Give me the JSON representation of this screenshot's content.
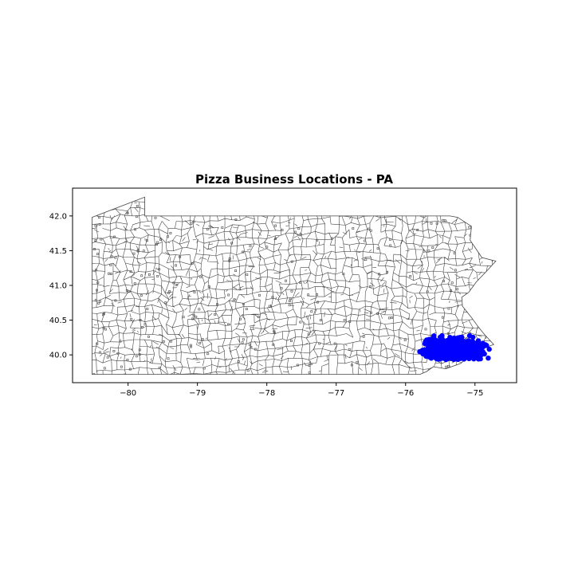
{
  "chart_data": {
    "type": "scatter",
    "title": "Pizza Business Locations - PA",
    "xlabel": "",
    "ylabel": "",
    "xlim": [
      -80.8,
      -74.4
    ],
    "ylim": [
      39.6,
      42.4
    ],
    "x_ticks": [
      -80,
      -79,
      -78,
      -77,
      -76,
      -75
    ],
    "x_tick_labels": [
      "−80",
      "−79",
      "−78",
      "−77",
      "−76",
      "−75"
    ],
    "y_ticks": [
      40.0,
      40.5,
      41.0,
      41.5,
      42.0
    ],
    "y_tick_labels": [
      "40.0",
      "40.5",
      "41.0",
      "41.5",
      "42.0"
    ],
    "grid": false,
    "legend": "none",
    "base_layer": "Pennsylvania municipal boundaries",
    "point_color": "#0000ff",
    "boundary_color": "#444444",
    "cluster": {
      "center_lon": -75.3,
      "center_lat": 40.08,
      "lon_range": [
        -75.85,
        -74.75
      ],
      "lat_range": [
        39.93,
        40.46
      ]
    }
  }
}
